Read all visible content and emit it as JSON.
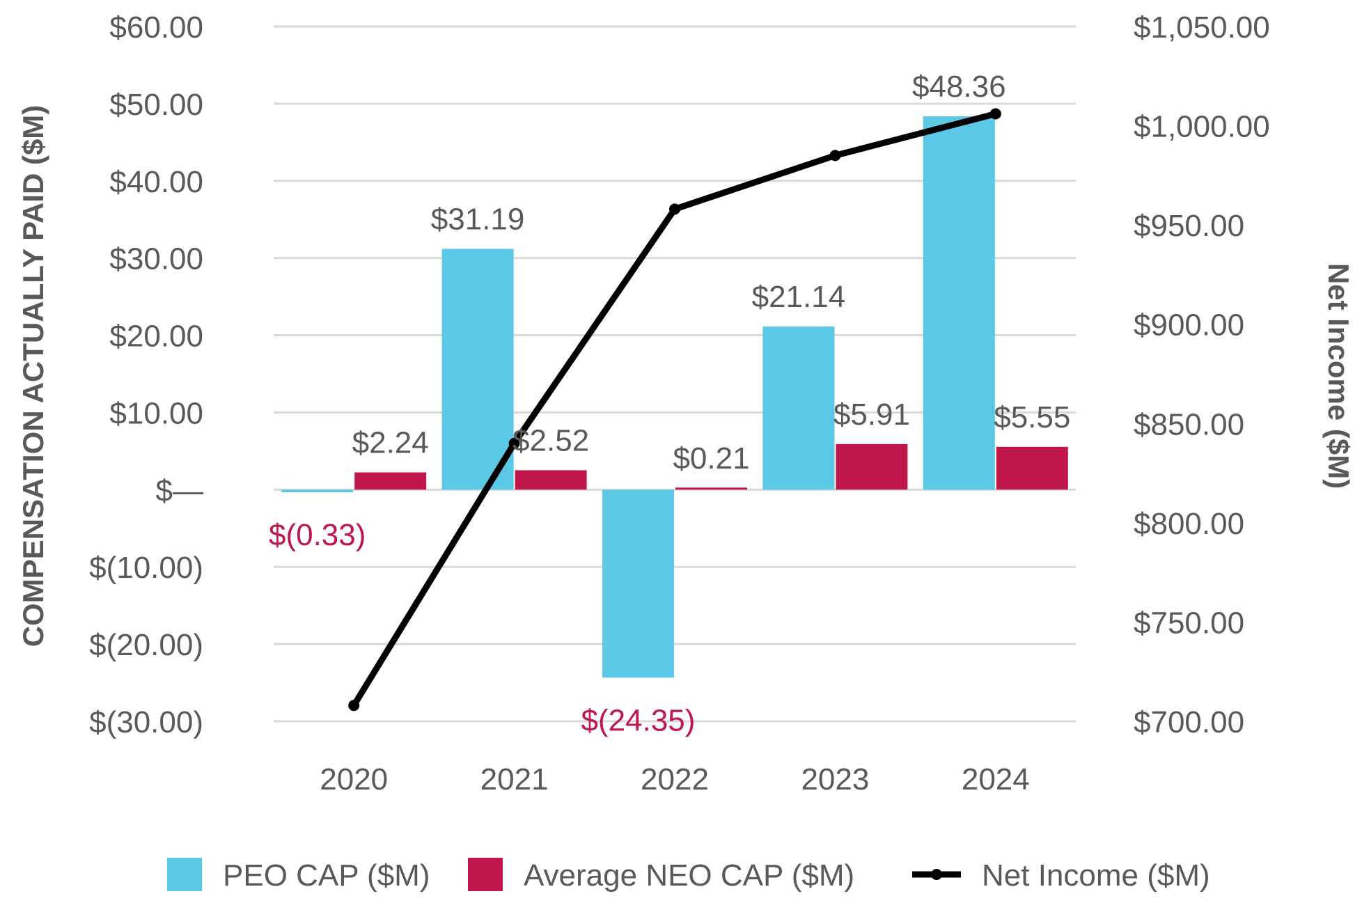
{
  "chart_data": {
    "type": "bar",
    "title": "",
    "categories": [
      "2020",
      "2021",
      "2022",
      "2023",
      "2024"
    ],
    "series": [
      {
        "name": "PEO CAP ($M)",
        "kind": "bar",
        "axis": "left",
        "color": "#5bc8e6",
        "values": [
          -0.33,
          31.19,
          -24.35,
          21.14,
          48.36
        ],
        "labels": [
          "$(0.33)",
          "$31.19",
          "$(24.35)",
          "$21.14",
          "$48.36"
        ]
      },
      {
        "name": "Average NEO CAP ($M)",
        "kind": "bar",
        "axis": "left",
        "color": "#c0174a",
        "values": [
          2.24,
          2.52,
          0.21,
          5.91,
          5.55
        ],
        "labels": [
          "$2.24",
          "$2.52",
          "$0.21",
          "$5.91",
          "$5.55"
        ]
      },
      {
        "name": "Net Income ($M)",
        "kind": "line",
        "axis": "right",
        "color": "#000000",
        "values": [
          708,
          840,
          958,
          985,
          1006
        ]
      }
    ],
    "ylabel": "COMPENSATION ACTUALLY PAID ($M)",
    "ylabel_right": "Net Income ($M)",
    "ylim": [
      -30,
      60
    ],
    "ylim_right": [
      700,
      1050
    ],
    "yticks": [
      -30,
      -20,
      -10,
      0,
      10,
      20,
      30,
      40,
      50,
      60
    ],
    "ytick_labels": [
      "$(30.00)",
      "$(20.00)",
      "$(10.00)",
      "$—",
      "$10.00",
      "$20.00",
      "$30.00",
      "$40.00",
      "$50.00",
      "$60.00"
    ],
    "yticks_right": [
      700,
      750,
      800,
      850,
      900,
      950,
      1000,
      1050
    ],
    "ytick_labels_right": [
      "$700.00",
      "$750.00",
      "$800.00",
      "$850.00",
      "$900.00",
      "$950.00",
      "$1,000.00",
      "$1,050.00"
    ],
    "negative_label_color": "#c0174a",
    "label_color": "#595959",
    "grid": true,
    "legend_position": "bottom"
  }
}
